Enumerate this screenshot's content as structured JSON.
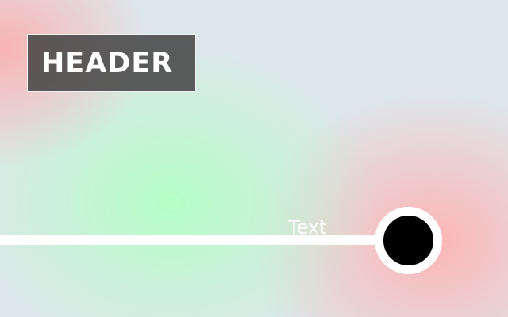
{
  "header": {
    "title": "HEADER"
  },
  "track": {
    "label": "Text"
  },
  "colors": {
    "header_background": "#464646",
    "track": "#ffffff",
    "handle_fill": "#000000",
    "handle_ring": "#ffffff",
    "gradient_pink": "#ffb2b2",
    "gradient_green": "#b2ffc4",
    "gradient_base": "#dde7ea"
  },
  "icons": {
    "handle": "circle-knob"
  }
}
